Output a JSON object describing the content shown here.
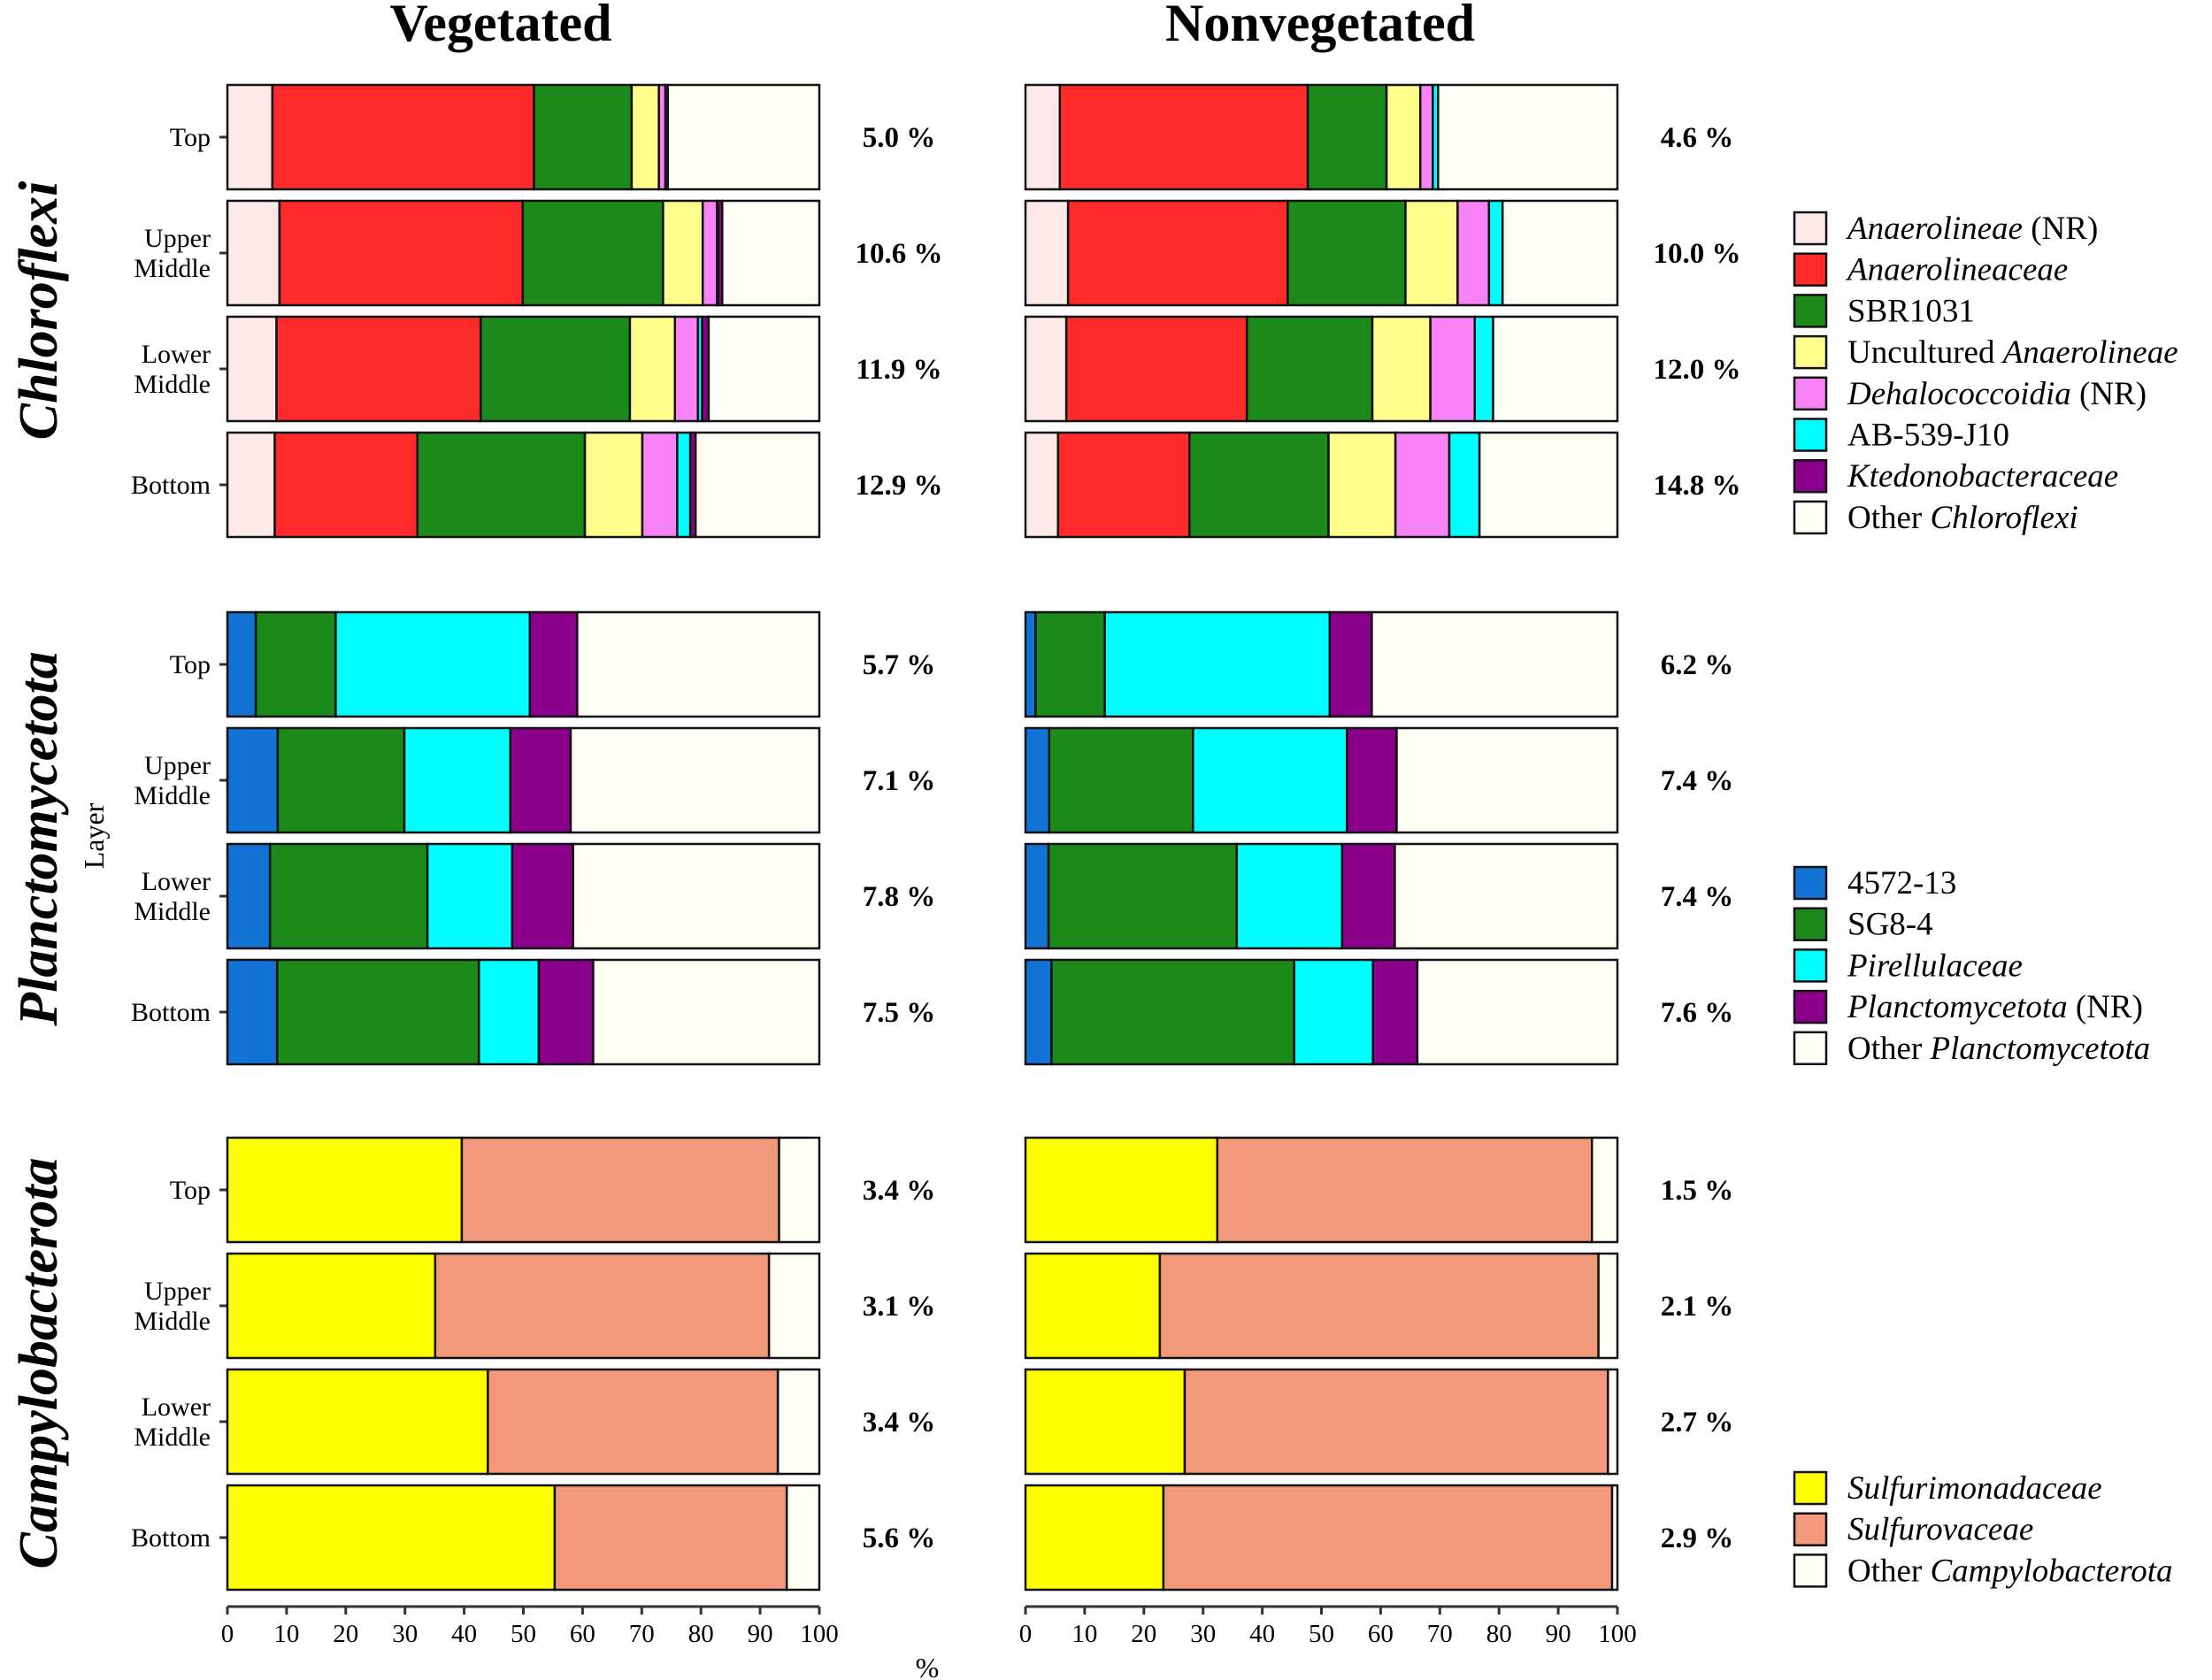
{
  "chart_data": {
    "type": "bar",
    "orientation": "horizontal-stacked",
    "xlabel": "%",
    "ylabel": "Layer",
    "xlim": [
      0,
      100
    ],
    "xticks": [
      "0",
      "10",
      "20",
      "30",
      "40",
      "50",
      "60",
      "70",
      "80",
      "90",
      "100"
    ],
    "columns": [
      "Vegetated",
      "Nonvegetated"
    ],
    "layers": [
      "Top",
      "Upper Middle",
      "Lower Middle",
      "Bottom"
    ],
    "panels": [
      {
        "phylum": "Chloroflexi",
        "categories": [
          {
            "parts": [
              {
                "t": "Anaerolineae",
                "i": true
              },
              {
                "t": " (NR)"
              }
            ],
            "color": "#fde9e7"
          },
          {
            "parts": [
              {
                "t": "Anaerolineaceae",
                "i": true
              }
            ],
            "color": "#ff2a2a"
          },
          {
            "parts": [
              {
                "t": "SBR1031"
              }
            ],
            "color": "#1b8a1b"
          },
          {
            "parts": [
              {
                "t": "Uncultured "
              },
              {
                "t": "Anaerolineae",
                "i": true
              }
            ],
            "color": "#ffff8c"
          },
          {
            "parts": [
              {
                "t": "Dehalococcoidia",
                "i": true
              },
              {
                "t": " (NR)"
              }
            ],
            "color": "#f783f7"
          },
          {
            "parts": [
              {
                "t": "AB-539-J10"
              }
            ],
            "color": "#00ffff"
          },
          {
            "parts": [
              {
                "t": "Ktedonobacteraceae",
                "i": true
              }
            ],
            "color": "#8b008b"
          },
          {
            "parts": [
              {
                "t": "Other "
              },
              {
                "t": "Chloroflexi",
                "i": true
              }
            ],
            "color": "#fffff6"
          }
        ],
        "Vegetated": {
          "values": [
            [
              7.6,
              44.2,
              16.5,
              4.6,
              1.1,
              0.0,
              0.4,
              25.6
            ],
            [
              8.8,
              41.1,
              23.7,
              6.7,
              2.4,
              0.2,
              0.7,
              16.4
            ],
            [
              8.3,
              34.5,
              25.2,
              7.6,
              3.9,
              0.7,
              1.1,
              18.7
            ],
            [
              8.0,
              24.1,
              28.3,
              9.7,
              5.9,
              2.2,
              0.9,
              20.9
            ]
          ],
          "totals": [
            "5.0 %",
            "10.6 %",
            "11.9 %",
            "12.9 %"
          ]
        },
        "Nonvegetated": {
          "values": [
            [
              5.8,
              41.9,
              13.3,
              5.7,
              2.1,
              0.9,
              0.0,
              30.3
            ],
            [
              7.2,
              37.1,
              19.9,
              8.8,
              5.3,
              2.3,
              0.0,
              19.4
            ],
            [
              6.9,
              30.5,
              21.2,
              9.8,
              7.5,
              3.1,
              0.0,
              21.0
            ],
            [
              5.5,
              22.2,
              23.5,
              11.3,
              9.1,
              5.1,
              0.0,
              23.3
            ]
          ],
          "totals": [
            "4.6 %",
            "10.0 %",
            "12.0 %",
            "14.8 %"
          ]
        }
      },
      {
        "phylum": "Planctomycetota",
        "categories": [
          {
            "parts": [
              {
                "t": "4572-13"
              }
            ],
            "color": "#1273d4"
          },
          {
            "parts": [
              {
                "t": "SG8-4"
              }
            ],
            "color": "#1b8a1b"
          },
          {
            "parts": [
              {
                "t": "Pirellulaceae",
                "i": true
              }
            ],
            "color": "#00ffff"
          },
          {
            "parts": [
              {
                "t": "Planctomycetota",
                "i": true
              },
              {
                "t": " (NR)"
              }
            ],
            "color": "#8b008b"
          },
          {
            "parts": [
              {
                "t": "Other "
              },
              {
                "t": "Planctomycetota",
                "i": true
              }
            ],
            "color": "#fffff6"
          }
        ],
        "Vegetated": {
          "values": [
            [
              4.8,
              13.5,
              32.8,
              8.0,
              40.9
            ],
            [
              8.5,
              21.4,
              17.9,
              10.2,
              42.0
            ],
            [
              7.2,
              26.6,
              14.3,
              10.3,
              41.6
            ],
            [
              8.4,
              34.1,
              10.1,
              9.2,
              38.2
            ]
          ],
          "totals": [
            "5.7 %",
            "7.1 %",
            "7.8 %",
            "7.5 %"
          ]
        },
        "Nonvegetated": {
          "values": [
            [
              1.7,
              11.7,
              38.0,
              7.1,
              41.5
            ],
            [
              4.0,
              24.3,
              26.0,
              8.4,
              37.3
            ],
            [
              3.9,
              31.8,
              17.8,
              8.9,
              37.6
            ],
            [
              4.4,
              41.0,
              13.3,
              7.5,
              33.8
            ]
          ],
          "totals": [
            "6.2 %",
            "7.4 %",
            "7.4 %",
            "7.6 %"
          ]
        }
      },
      {
        "phylum": "Campylobacterota",
        "categories": [
          {
            "parts": [
              {
                "t": "Sulfurimonadaceae",
                "i": true
              }
            ],
            "color": "#ffff00"
          },
          {
            "parts": [
              {
                "t": "Sulfurovaceae",
                "i": true
              }
            ],
            "color": "#f2997b"
          },
          {
            "parts": [
              {
                "t": "Other "
              },
              {
                "t": "Campylobacterota",
                "i": true
              }
            ],
            "color": "#fffff6"
          }
        ],
        "Vegetated": {
          "values": [
            [
              39.6,
              53.6,
              6.8
            ],
            [
              35.1,
              56.4,
              8.5
            ],
            [
              44.0,
              49.0,
              7.0
            ],
            [
              55.3,
              39.2,
              5.5
            ]
          ],
          "totals": [
            "3.4 %",
            "3.1 %",
            "3.4 %",
            "5.6 %"
          ]
        },
        "Nonvegetated": {
          "values": [
            [
              32.4,
              63.3,
              4.3
            ],
            [
              22.7,
              74.1,
              3.2
            ],
            [
              26.9,
              71.5,
              1.6
            ],
            [
              23.3,
              75.8,
              0.9
            ]
          ],
          "totals": [
            "1.5 %",
            "2.1 %",
            "2.7 %",
            "2.9 %"
          ]
        }
      }
    ]
  }
}
